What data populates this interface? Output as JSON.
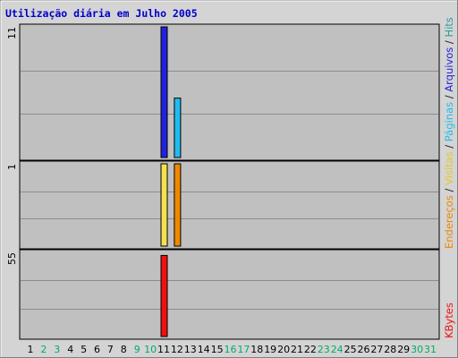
{
  "chart_data": {
    "type": "bar",
    "title": "Utilização diária em Julho 2005",
    "categories": [
      "1",
      "2",
      "3",
      "4",
      "5",
      "6",
      "7",
      "8",
      "9",
      "10",
      "11",
      "12",
      "13",
      "14",
      "15",
      "16",
      "17",
      "18",
      "19",
      "20",
      "21",
      "22",
      "23",
      "24",
      "25",
      "26",
      "27",
      "28",
      "29",
      "30",
      "31"
    ],
    "weekend_days": [
      "2",
      "3",
      "9",
      "10",
      "16",
      "17",
      "23",
      "24",
      "30",
      "31"
    ],
    "panels": [
      {
        "max_label": "11",
        "ymax": 11,
        "series": [
          {
            "name": "Hits",
            "color": "#339999",
            "values": {
              "11": 11
            }
          },
          {
            "name": "Arquivos",
            "color": "#2222dd",
            "values": {
              "11": 11
            }
          },
          {
            "name": "Páginas",
            "color": "#22bbee",
            "values": {
              "12": 5
            }
          }
        ]
      },
      {
        "max_label": "1",
        "ymax": 1,
        "series": [
          {
            "name": "Visitas",
            "color": "#f5e050",
            "values": {
              "11": 1
            }
          },
          {
            "name": "Endereços",
            "color": "#ee8800",
            "values": {
              "12": 1
            }
          }
        ]
      },
      {
        "max_label": "55",
        "ymax": 55,
        "series": [
          {
            "name": "KBytes",
            "color": "#ee1111",
            "values": {
              "11": 53
            }
          }
        ]
      }
    ],
    "legend_right_top": [
      {
        "text": "Hits",
        "color": "#339999"
      },
      {
        "text": "/",
        "color": "#222222"
      },
      {
        "text": "Arquivos",
        "color": "#2222dd"
      },
      {
        "text": "/",
        "color": "#222222"
      },
      {
        "text": "Páginas",
        "color": "#22bbee"
      },
      {
        "text": "/",
        "color": "#222222"
      },
      {
        "text": "Visitas",
        "color": "#e8c820"
      },
      {
        "text": "/",
        "color": "#222222"
      },
      {
        "text": "Endereços",
        "color": "#ee8800"
      }
    ],
    "legend_right_bottom": {
      "text": "KBytes",
      "color": "#ee1111"
    },
    "colors": {
      "title": "#0000cc",
      "weekday_label": "#000000",
      "weekend_label": "#00aa66",
      "panel_bg": "#c0c0c0",
      "frame_bg": "#d4d4d4"
    }
  }
}
